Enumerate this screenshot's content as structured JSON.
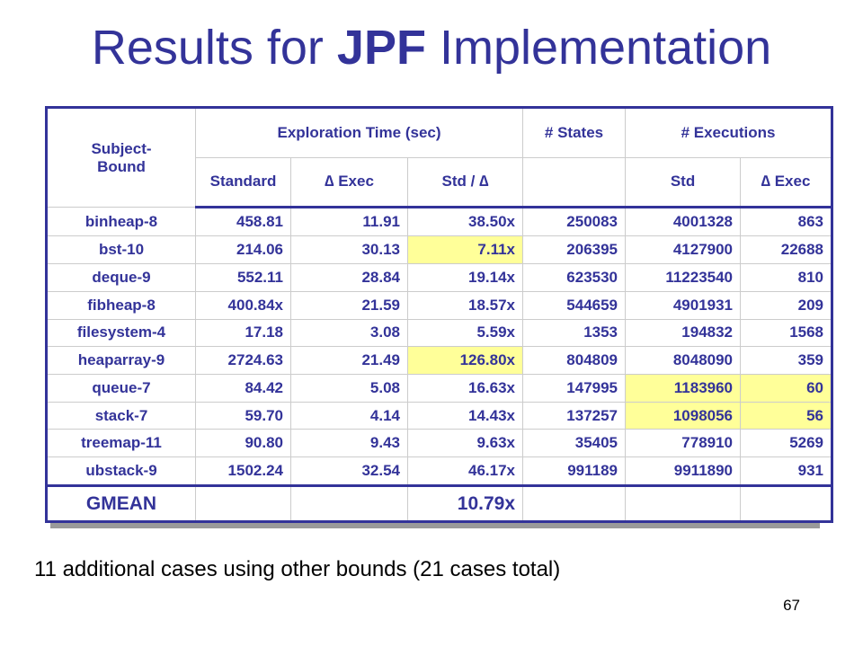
{
  "title": {
    "part1": "Results for ",
    "bold": "JPF",
    "part2": " Implementation"
  },
  "table": {
    "header": {
      "subject": "Subject-\nBound",
      "exploration": "Exploration Time (sec)",
      "states": "# States",
      "executions": "# Executions",
      "standard": "Standard",
      "delta_exec": "∆ Exec",
      "std_over_delta": "Std / ∆",
      "std": "Std",
      "delta_exec2": "∆ Exec"
    },
    "rows": [
      {
        "name": "binheap-8",
        "standard": "458.81",
        "delta": "11.91",
        "ratio": "38.50x",
        "states": "250083",
        "std": "4001328",
        "dexec": "863"
      },
      {
        "name": "bst-10",
        "standard": "214.06",
        "delta": "30.13",
        "ratio": "7.11x",
        "states": "206395",
        "std": "4127900",
        "dexec": "22688"
      },
      {
        "name": "deque-9",
        "standard": "552.11",
        "delta": "28.84",
        "ratio": "19.14x",
        "states": "623530",
        "std": "11223540",
        "dexec": "810"
      },
      {
        "name": "fibheap-8",
        "standard": "400.84x",
        "delta": "21.59",
        "ratio": "18.57x",
        "states": "544659",
        "std": "4901931",
        "dexec": "209"
      },
      {
        "name": "filesystem-4",
        "standard": "17.18",
        "delta": "3.08",
        "ratio": "5.59x",
        "states": "1353",
        "std": "194832",
        "dexec": "1568"
      },
      {
        "name": "heaparray-9",
        "standard": "2724.63",
        "delta": "21.49",
        "ratio": "126.80x",
        "states": "804809",
        "std": "8048090",
        "dexec": "359"
      },
      {
        "name": "queue-7",
        "standard": "84.42",
        "delta": "5.08",
        "ratio": "16.63x",
        "states": "147995",
        "std": "1183960",
        "dexec": "60"
      },
      {
        "name": "stack-7",
        "standard": "59.70",
        "delta": "4.14",
        "ratio": "14.43x",
        "states": "137257",
        "std": "1098056",
        "dexec": "56"
      },
      {
        "name": "treemap-11",
        "standard": "90.80",
        "delta": "9.43",
        "ratio": "9.63x",
        "states": "35405",
        "std": "778910",
        "dexec": "5269"
      },
      {
        "name": "ubstack-9",
        "standard": "1502.24",
        "delta": "32.54",
        "ratio": "46.17x",
        "states": "991189",
        "std": "9911890",
        "dexec": "931"
      }
    ],
    "gmean": {
      "label": "GMEAN",
      "ratio": "10.79x"
    },
    "highlight_color": "#ffff99"
  },
  "note": "11 additional cases using other bounds (21 cases total)",
  "page_number": "67",
  "colors": {
    "accent": "#333399",
    "highlight": "#ffff99"
  }
}
